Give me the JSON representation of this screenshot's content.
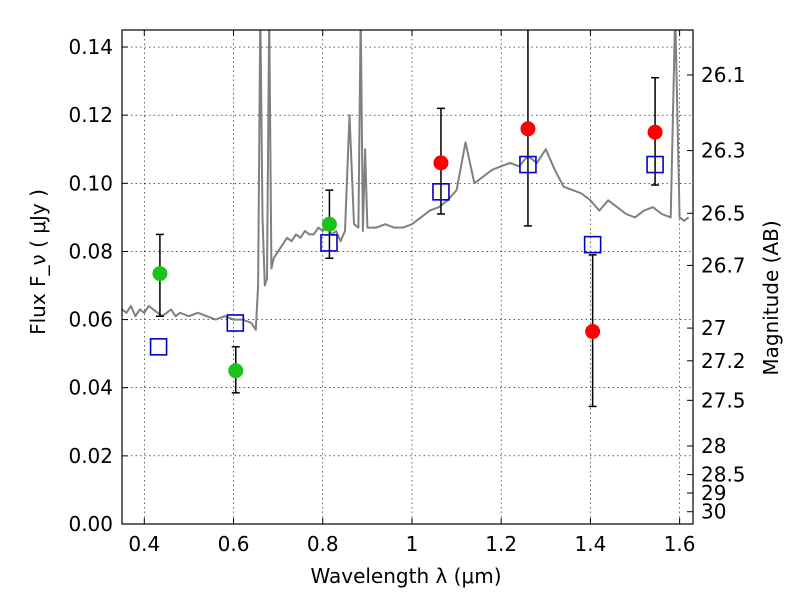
{
  "chart_data": {
    "type": "scatter",
    "xlabel": "Wavelength  λ (μm)",
    "ylabel": "Flux  F_ν  ( μJy )",
    "y2label": "Magnitude (AB)",
    "xlim": [
      0.35,
      1.63
    ],
    "ylim": [
      0.0,
      0.145
    ],
    "grid": true,
    "x_ticks": [
      0.4,
      0.6,
      0.8,
      1.0,
      1.2,
      1.4,
      1.6
    ],
    "x_tick_labels": [
      "0.4",
      "0.6",
      "0.8",
      "1",
      "1.2",
      "1.4",
      "1.6"
    ],
    "y_ticks": [
      0.0,
      0.02,
      0.04,
      0.06,
      0.08,
      0.1,
      0.12,
      0.14
    ],
    "y_tick_labels": [
      "0.00",
      "0.02",
      "0.04",
      "0.06",
      "0.08",
      "0.10",
      "0.12",
      "0.14"
    ],
    "magnitude_ticks": [
      {
        "label": "26.1",
        "flux": 0.1318
      },
      {
        "label": "26.3",
        "flux": 0.1096
      },
      {
        "label": "26.5",
        "flux": 0.0912
      },
      {
        "label": "26.7",
        "flux": 0.0759
      },
      {
        "label": "27",
        "flux": 0.0575
      },
      {
        "label": "27.2",
        "flux": 0.0479
      },
      {
        "label": "27.5",
        "flux": 0.0363
      },
      {
        "label": "28",
        "flux": 0.0229
      },
      {
        "label": "28.5",
        "flux": 0.0145
      },
      {
        "label": "29",
        "flux": 0.0091
      },
      {
        "label": "30",
        "flux": 0.0036
      }
    ],
    "series": [
      {
        "type": "line",
        "color": "#808080",
        "x": [
          0.35,
          0.36,
          0.37,
          0.38,
          0.39,
          0.4,
          0.41,
          0.42,
          0.43,
          0.44,
          0.45,
          0.46,
          0.47,
          0.48,
          0.5,
          0.52,
          0.54,
          0.56,
          0.58,
          0.6,
          0.62,
          0.64,
          0.65,
          0.655,
          0.66,
          0.665,
          0.67,
          0.675,
          0.68,
          0.685,
          0.69,
          0.7,
          0.71,
          0.72,
          0.73,
          0.74,
          0.75,
          0.76,
          0.77,
          0.78,
          0.79,
          0.8,
          0.81,
          0.82,
          0.83,
          0.84,
          0.85,
          0.86,
          0.87,
          0.88,
          0.885,
          0.89,
          0.895,
          0.9,
          0.92,
          0.94,
          0.96,
          0.98,
          1.0,
          1.02,
          1.04,
          1.06,
          1.08,
          1.1,
          1.12,
          1.14,
          1.16,
          1.18,
          1.2,
          1.22,
          1.24,
          1.26,
          1.28,
          1.3,
          1.32,
          1.34,
          1.36,
          1.38,
          1.4,
          1.42,
          1.44,
          1.46,
          1.48,
          1.5,
          1.52,
          1.54,
          1.56,
          1.58,
          1.59,
          1.6,
          1.61,
          1.62
        ],
        "y": [
          0.063,
          0.062,
          0.064,
          0.061,
          0.063,
          0.062,
          0.064,
          0.063,
          0.062,
          0.061,
          0.062,
          0.063,
          0.061,
          0.062,
          0.061,
          0.062,
          0.061,
          0.06,
          0.061,
          0.06,
          0.06,
          0.059,
          0.057,
          0.07,
          0.15,
          0.09,
          0.07,
          0.072,
          0.15,
          0.075,
          0.078,
          0.08,
          0.082,
          0.084,
          0.083,
          0.085,
          0.084,
          0.086,
          0.085,
          0.085,
          0.087,
          0.086,
          0.087,
          0.085,
          0.086,
          0.083,
          0.086,
          0.12,
          0.088,
          0.087,
          0.15,
          0.086,
          0.11,
          0.087,
          0.087,
          0.088,
          0.087,
          0.087,
          0.088,
          0.09,
          0.092,
          0.093,
          0.095,
          0.098,
          0.112,
          0.1,
          0.102,
          0.104,
          0.105,
          0.106,
          0.105,
          0.108,
          0.106,
          0.11,
          0.104,
          0.099,
          0.098,
          0.097,
          0.095,
          0.092,
          0.095,
          0.093,
          0.091,
          0.09,
          0.092,
          0.093,
          0.091,
          0.09,
          0.15,
          0.09,
          0.089,
          0.09
        ]
      },
      {
        "type": "scatter",
        "marker": "circle",
        "x": [
          0.435,
          0.605,
          0.815
        ],
        "y": [
          0.0735,
          0.045,
          0.088
        ],
        "yerr_low": [
          0.0125,
          0.0065,
          0.01
        ],
        "yerr_high": [
          0.0115,
          0.007,
          0.01
        ],
        "color": "#1cc21c"
      },
      {
        "type": "scatter",
        "marker": "circle",
        "x": [
          1.065,
          1.26,
          1.405,
          1.545
        ],
        "y": [
          0.106,
          0.116,
          0.0565,
          0.115
        ],
        "yerr_low": [
          0.015,
          0.0285,
          0.022,
          0.0155
        ],
        "yerr_high": [
          0.016,
          0.034,
          0.0225,
          0.016
        ],
        "color": "#ff0000"
      },
      {
        "type": "scatter",
        "marker": "open-square",
        "x": [
          0.432,
          0.604,
          0.814,
          1.065,
          1.26,
          1.405,
          1.545
        ],
        "y": [
          0.052,
          0.059,
          0.0825,
          0.0975,
          0.1055,
          0.082,
          0.1055
        ],
        "color": "#0000cc"
      }
    ]
  }
}
